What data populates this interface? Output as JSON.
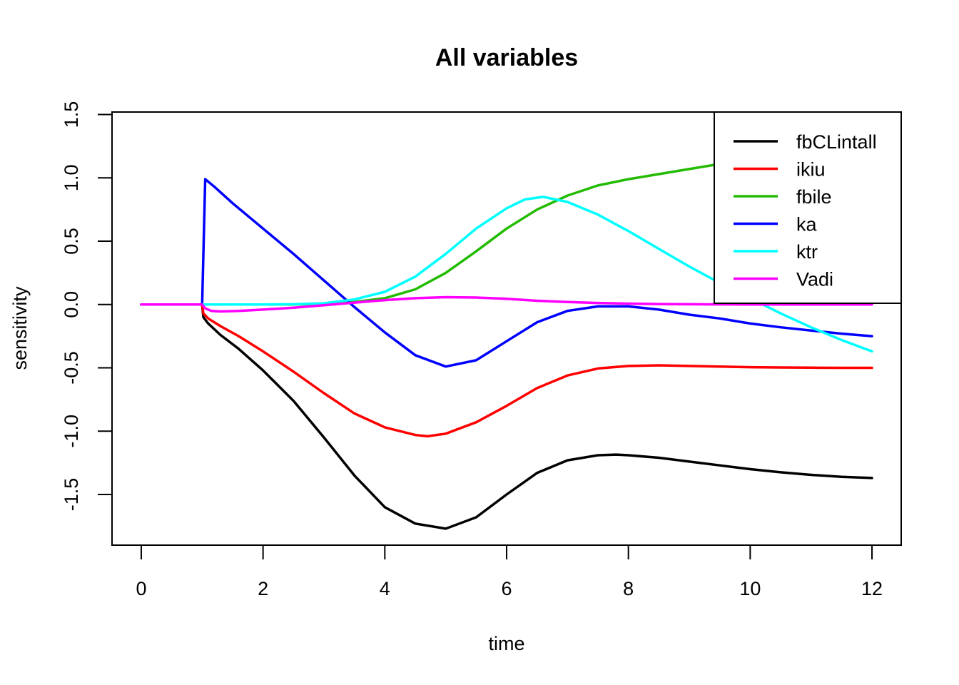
{
  "chart_data": {
    "type": "line",
    "title": "All variables",
    "xlabel": "time",
    "ylabel": "sensitivity",
    "xlim": [
      -0.48,
      12.48
    ],
    "ylim": [
      -1.9,
      1.52
    ],
    "xticks": [
      0,
      2,
      4,
      6,
      8,
      10,
      12
    ],
    "xtick_labels": [
      "0",
      "2",
      "4",
      "6",
      "8",
      "10",
      "12"
    ],
    "yticks": [
      -1.5,
      -1.0,
      -0.5,
      0.0,
      0.5,
      1.0,
      1.5
    ],
    "ytick_labels": [
      "-1.5",
      "-1.0",
      "-0.5",
      "0.0",
      "0.5",
      "1.0",
      "1.5"
    ],
    "grid": false,
    "legend_position": "top-right",
    "series": [
      {
        "name": "fbCLintall",
        "color": "#000000",
        "x": [
          0,
          1,
          1.02,
          1.1,
          1.3,
          1.6,
          2,
          2.5,
          3,
          3.5,
          4,
          4.5,
          5,
          5.5,
          6,
          6.5,
          7,
          7.5,
          7.8,
          8,
          8.5,
          9,
          9.5,
          10,
          10.5,
          11,
          11.5,
          12
        ],
        "y": [
          0,
          0,
          -0.1,
          -0.15,
          -0.24,
          -0.35,
          -0.52,
          -0.76,
          -1.05,
          -1.35,
          -1.6,
          -1.73,
          -1.77,
          -1.68,
          -1.5,
          -1.33,
          -1.23,
          -1.19,
          -1.185,
          -1.19,
          -1.21,
          -1.24,
          -1.27,
          -1.3,
          -1.325,
          -1.345,
          -1.36,
          -1.37
        ]
      },
      {
        "name": "ikiu",
        "color": "#ff0000",
        "x": [
          0,
          1,
          1.02,
          1.1,
          1.3,
          1.6,
          2,
          2.5,
          3,
          3.5,
          4,
          4.5,
          4.7,
          5,
          5.5,
          6,
          6.5,
          7,
          7.5,
          8,
          8.5,
          9,
          9.5,
          10,
          10.5,
          11,
          11.5,
          12
        ],
        "y": [
          0,
          0,
          -0.07,
          -0.11,
          -0.17,
          -0.25,
          -0.37,
          -0.53,
          -0.7,
          -0.86,
          -0.97,
          -1.03,
          -1.04,
          -1.02,
          -0.93,
          -0.8,
          -0.66,
          -0.56,
          -0.505,
          -0.485,
          -0.48,
          -0.485,
          -0.49,
          -0.495,
          -0.497,
          -0.499,
          -0.5,
          -0.5
        ]
      },
      {
        "name": "fbile",
        "color": "#22bb00",
        "x": [
          0,
          1,
          2,
          2.5,
          3,
          3.5,
          4,
          4.5,
          5,
          5.5,
          6,
          6.5,
          7,
          7.5,
          8,
          8.5,
          9,
          9.5,
          10,
          10.5,
          11,
          11.5,
          12
        ],
        "y": [
          0,
          0,
          0,
          0.001,
          0.005,
          0.02,
          0.05,
          0.12,
          0.25,
          0.42,
          0.6,
          0.75,
          0.86,
          0.94,
          0.99,
          1.03,
          1.07,
          1.11,
          1.15,
          1.19,
          1.22,
          1.25,
          1.28
        ]
      },
      {
        "name": "ka",
        "color": "#0000ff",
        "x": [
          0,
          1,
          1.05,
          1.2,
          1.5,
          2,
          2.5,
          3,
          3.5,
          4,
          4.5,
          5,
          5.5,
          6,
          6.5,
          7,
          7.5,
          8,
          8.5,
          9,
          9.5,
          10,
          10.5,
          11,
          11.5,
          12
        ],
        "y": [
          0,
          0,
          0.99,
          0.93,
          0.8,
          0.6,
          0.4,
          0.19,
          -0.02,
          -0.22,
          -0.4,
          -0.49,
          -0.44,
          -0.29,
          -0.14,
          -0.05,
          -0.015,
          -0.015,
          -0.04,
          -0.08,
          -0.11,
          -0.15,
          -0.18,
          -0.205,
          -0.23,
          -0.25
        ]
      },
      {
        "name": "ktr",
        "color": "#00ffff",
        "x": [
          0,
          1,
          2,
          2.5,
          3,
          3.5,
          4,
          4.5,
          5,
          5.5,
          6,
          6.3,
          6.6,
          7,
          7.5,
          8,
          8.5,
          9,
          9.5,
          10,
          10.5,
          11,
          11.5,
          12
        ],
        "y": [
          0,
          0,
          0,
          0.002,
          0.01,
          0.04,
          0.1,
          0.22,
          0.4,
          0.6,
          0.76,
          0.83,
          0.85,
          0.81,
          0.71,
          0.58,
          0.44,
          0.3,
          0.17,
          0.05,
          -0.07,
          -0.18,
          -0.28,
          -0.37
        ]
      },
      {
        "name": "Vadi",
        "color": "#ff00ff",
        "x": [
          0,
          1,
          1.05,
          1.15,
          1.3,
          1.6,
          2,
          2.5,
          3,
          3.5,
          4,
          4.5,
          5,
          5.5,
          6,
          6.5,
          7,
          7.5,
          8,
          8.5,
          9,
          9.5,
          10,
          10.5,
          11,
          11.5,
          12
        ],
        "y": [
          0,
          0,
          -0.03,
          -0.05,
          -0.055,
          -0.05,
          -0.04,
          -0.025,
          -0.005,
          0.015,
          0.035,
          0.05,
          0.058,
          0.055,
          0.045,
          0.03,
          0.02,
          0.012,
          0.007,
          0.004,
          0.002,
          0.001,
          0,
          0,
          0,
          0,
          0
        ]
      }
    ]
  }
}
